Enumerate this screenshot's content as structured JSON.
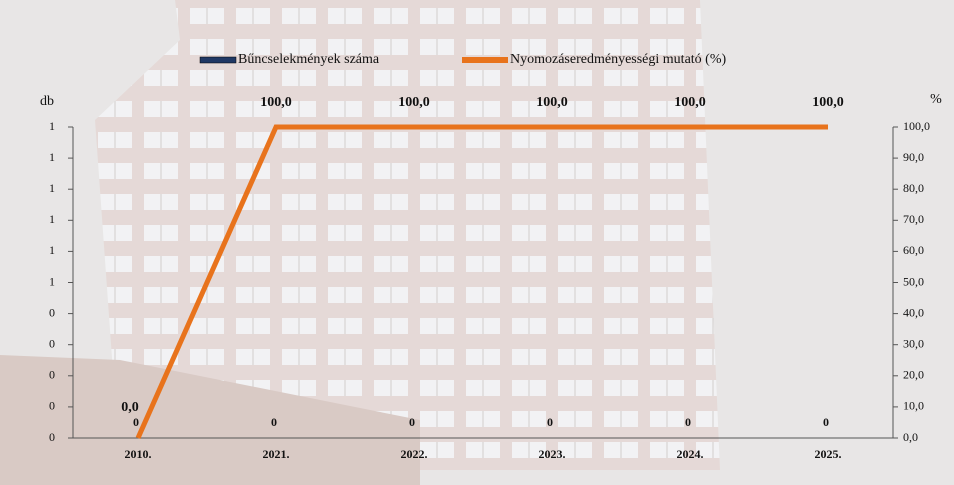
{
  "chart_data": {
    "type": "combo",
    "categories": [
      "2010.",
      "2021.",
      "2022.",
      "2023.",
      "2024.",
      "2025."
    ],
    "y_label": "db",
    "y2_label": "%",
    "ylim": [
      0,
      1
    ],
    "yticks": [
      0,
      {
        "value": 0.1,
        "label": "0"
      },
      {
        "value": 0.2,
        "label": "0"
      },
      {
        "value": 0.3,
        "label": "0"
      },
      {
        "value": 0.4,
        "label": "0"
      },
      {
        "value": 0.5,
        "label": "1"
      },
      {
        "value": 0.6,
        "label": "1"
      },
      {
        "value": 0.7,
        "label": "1"
      },
      {
        "value": 0.8,
        "label": "1"
      },
      {
        "value": 0.9,
        "label": "1"
      },
      1
    ],
    "y2lim": [
      0,
      100
    ],
    "y2ticks": [
      {
        "value": 0,
        "label": "0,0"
      },
      {
        "value": 10,
        "label": "10,0"
      },
      {
        "value": 20,
        "label": "20,0"
      },
      {
        "value": 30,
        "label": "30,0"
      },
      {
        "value": 40,
        "label": "40,0"
      },
      {
        "value": 50,
        "label": "50,0"
      },
      {
        "value": 60,
        "label": "60,0"
      },
      {
        "value": 70,
        "label": "70,0"
      },
      {
        "value": 80,
        "label": "80,0"
      },
      {
        "value": 90,
        "label": "90,0"
      },
      {
        "value": 100,
        "label": "100,0"
      }
    ],
    "legend": "top",
    "series": [
      {
        "name": "Bűncselekmények száma",
        "type": "bar",
        "color": "#1f3864",
        "values": [
          0,
          0,
          0,
          0,
          0,
          0
        ]
      },
      {
        "name": "Nyomozáseredményességi mutató (%)",
        "type": "line",
        "axis": "y2",
        "color": "#e8731c",
        "values": [
          0,
          100,
          100,
          100,
          100,
          100
        ],
        "value_labels": [
          "0,0",
          "100,0",
          "100,0",
          "100,0",
          "100,0",
          "100,0"
        ]
      }
    ]
  }
}
